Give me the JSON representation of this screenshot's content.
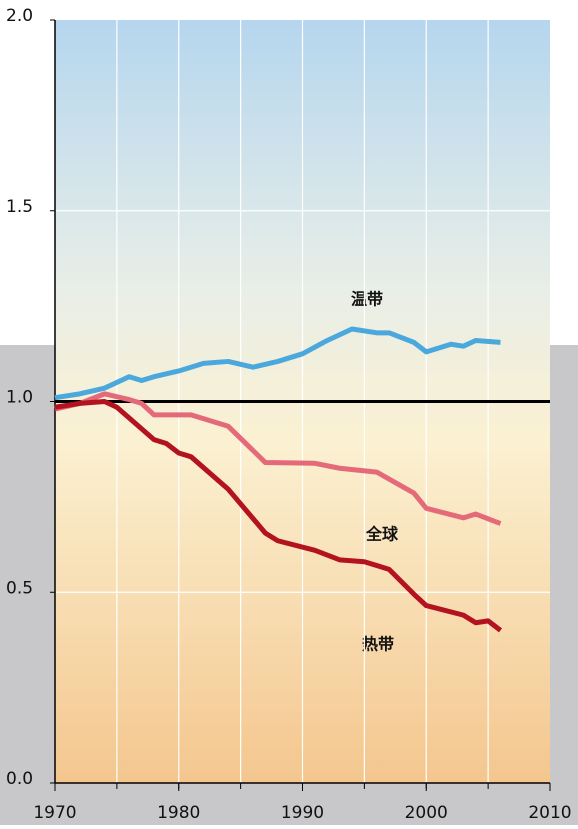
{
  "chart_data": {
    "type": "line",
    "x_ticks_note_free": null,
    "series": [
      {
        "name": "温带",
        "color": "#4aa8dd",
        "x": [
          1970,
          1972,
          1974,
          1976,
          1977,
          1978,
          1980,
          1982,
          1984,
          1986,
          1988,
          1990,
          1992,
          1994,
          1996,
          1997,
          1999,
          2000,
          2002,
          2003,
          2004,
          2006
        ],
        "values": [
          1.01,
          1.02,
          1.035,
          1.065,
          1.055,
          1.065,
          1.08,
          1.1,
          1.105,
          1.09,
          1.105,
          1.125,
          1.16,
          1.19,
          1.18,
          1.18,
          1.155,
          1.13,
          1.15,
          1.145,
          1.16,
          1.155
        ]
      },
      {
        "name": "全球",
        "color": "#e46a7a",
        "x": [
          1970,
          1972,
          1974,
          1976,
          1977,
          1978,
          1981,
          1984,
          1987,
          1991,
          1993,
          1996,
          1999,
          2000,
          2003,
          2004,
          2006
        ],
        "values": [
          0.98,
          0.995,
          1.02,
          1.005,
          0.995,
          0.965,
          0.965,
          0.935,
          0.84,
          0.838,
          0.825,
          0.815,
          0.76,
          0.72,
          0.695,
          0.705,
          0.68
        ]
      },
      {
        "name": "热带",
        "color": "#b3121f",
        "x": [
          1970,
          1972,
          1974,
          1975,
          1978,
          1979,
          1980,
          1981,
          1984,
          1987,
          1988,
          1991,
          1993,
          1995,
          1997,
          1999,
          2000,
          2003,
          2004,
          2005,
          2006
        ],
        "values": [
          0.985,
          0.995,
          1.0,
          0.985,
          0.9,
          0.89,
          0.865,
          0.855,
          0.77,
          0.655,
          0.635,
          0.61,
          0.585,
          0.58,
          0.56,
          0.495,
          0.465,
          0.44,
          0.42,
          0.425,
          0.4
        ]
      }
    ],
    "reference": 1.0,
    "xlim": [
      1970,
      2010
    ],
    "xticks": [
      1970,
      1980,
      1990,
      2000,
      2010
    ],
    "xgrid": [
      1975,
      1980,
      1985,
      1990,
      1995,
      2000,
      2005
    ],
    "ylim": [
      0,
      2
    ],
    "yticks": [
      {
        "value": 0,
        "label": "0.0"
      },
      {
        "value": 0.5,
        "label": "0.5"
      },
      {
        "value": 1,
        "label": "1.0"
      },
      {
        "value": 1.5,
        "label": "1.5"
      },
      {
        "value": 2,
        "label": "2.0"
      }
    ],
    "ygrid": [
      0.5,
      1.5
    ]
  }
}
